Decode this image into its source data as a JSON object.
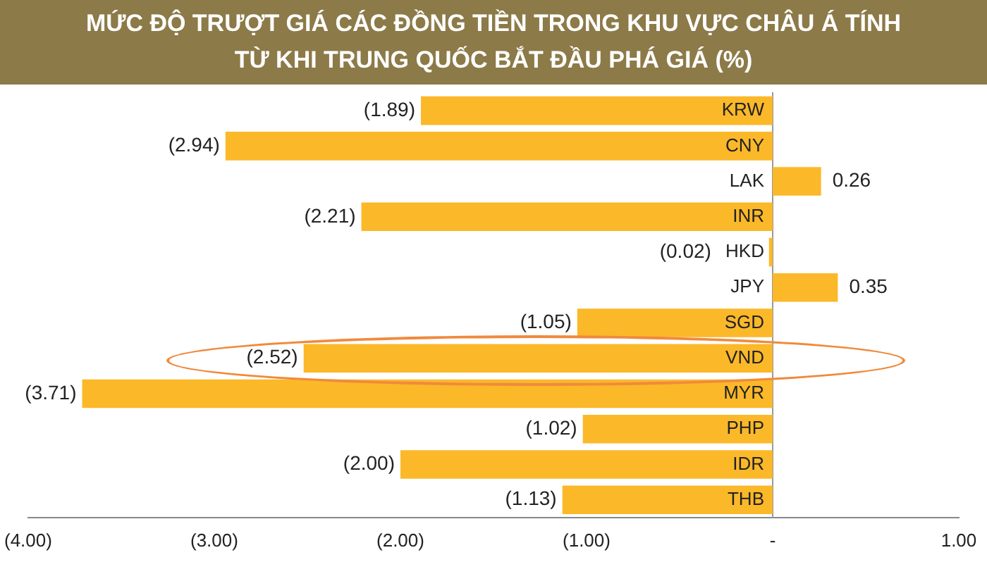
{
  "chart_data": {
    "type": "bar",
    "orientation": "horizontal",
    "title": "MỨC ĐỘ TRƯỢT GIÁ CÁC ĐỒNG TIỀN TRONG KHU VỰC CHÂU Á TÍNH TỪ KHI TRUNG QUỐC BẮT ĐẦU PHÁ GIÁ (%)",
    "categories": [
      "KRW",
      "CNY",
      "LAK",
      "INR",
      "HKD",
      "JPY",
      "SGD",
      "VND",
      "MYR",
      "PHP",
      "IDR",
      "THB"
    ],
    "values": [
      -1.89,
      -2.94,
      0.26,
      -2.21,
      -0.02,
      0.35,
      -1.05,
      -2.52,
      -3.71,
      -1.02,
      -2.0,
      -1.13
    ],
    "value_labels": [
      "(1.89)",
      "(2.94)",
      "0.26",
      "(2.21)",
      "(0.02)",
      "0.35",
      "(1.05)",
      "(2.52)",
      "(3.71)",
      "(1.02)",
      "(2.00)",
      "(1.13)"
    ],
    "color": "#fbb829",
    "xlim": [
      -4,
      1
    ],
    "xticks": [
      {
        "value": -4,
        "label": "(4.00)"
      },
      {
        "value": -3,
        "label": "(3.00)"
      },
      {
        "value": -2,
        "label": "(2.00)"
      },
      {
        "value": -1,
        "label": "(1.00)"
      },
      {
        "value": 0,
        "label": "-"
      },
      {
        "value": 1,
        "label": "1.00"
      }
    ],
    "grid": false,
    "legend": false
  }
}
